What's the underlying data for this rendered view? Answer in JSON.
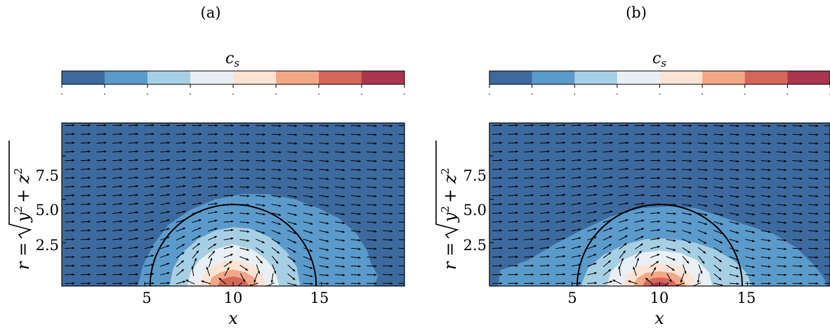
{
  "chart_data": [
    {
      "panel_label": "(a)",
      "type": "heatmap",
      "subtype": "filled contour with quiver overlay",
      "colorbar_title": "c",
      "colorbar_title_sub": "s",
      "colorbar_levels": [
        "#3d6a9e",
        "#5b9bcc",
        "#a7cfe4",
        "#e9f0f4",
        "#fde3d3",
        "#f2a886",
        "#d5675a",
        "#a7364e"
      ],
      "xlabel": "x",
      "ylabel": "r = √(y² + z²)",
      "ylabel_prefix": "r =",
      "ylabel_radicand_1": "y",
      "ylabel_radicand_2": "+ z",
      "ylabel_exp": "2",
      "x_ticks": [
        5,
        10,
        15
      ],
      "x_tick_labels": [
        "5",
        "10",
        "15"
      ],
      "y_ticks": [
        2.5,
        5.0,
        7.5
      ],
      "y_tick_labels": [
        "2.5",
        "5.0",
        "7.5"
      ],
      "xlim": [
        0.3,
        19.7
      ],
      "ylim": [
        0,
        9.4
      ],
      "circle": {
        "center_x": 10,
        "radius": 4.7
      },
      "contours": [
        {
          "level": 1,
          "points": [
            [
              4.6,
              0
            ],
            [
              4.9,
              1.2
            ],
            [
              5.5,
              2.4
            ],
            [
              6.3,
              3.5
            ],
            [
              7.6,
              4.4
            ],
            [
              9.0,
              5.0
            ],
            [
              10.5,
              5.3
            ],
            [
              12.0,
              5.3
            ],
            [
              13.5,
              5.0
            ],
            [
              14.8,
              4.5
            ],
            [
              16.0,
              3.9
            ],
            [
              17.0,
              3.0
            ],
            [
              17.6,
              2.0
            ],
            [
              17.8,
              1.3
            ],
            [
              18.2,
              0.6
            ],
            [
              18.0,
              0
            ]
          ]
        },
        {
          "level": 2,
          "points": [
            [
              6.4,
              0
            ],
            [
              6.6,
              1.0
            ],
            [
              7.1,
              1.9
            ],
            [
              8.0,
              2.7
            ],
            [
              9.0,
              3.2
            ],
            [
              10.0,
              3.4
            ],
            [
              11.0,
              3.3
            ],
            [
              12.1,
              2.8
            ],
            [
              13.0,
              2.0
            ],
            [
              13.6,
              1.1
            ],
            [
              13.8,
              0
            ]
          ]
        },
        {
          "level": 3,
          "points": [
            [
              7.4,
              0
            ],
            [
              7.6,
              0.8
            ],
            [
              8.1,
              1.5
            ],
            [
              8.9,
              2.1
            ],
            [
              10.0,
              2.4
            ],
            [
              11.1,
              2.1
            ],
            [
              11.9,
              1.5
            ],
            [
              12.4,
              0.8
            ],
            [
              12.6,
              0
            ]
          ]
        },
        {
          "level": 4,
          "points": [
            [
              8.1,
              0
            ],
            [
              8.3,
              0.6
            ],
            [
              8.8,
              1.1
            ],
            [
              9.4,
              1.4
            ],
            [
              10.0,
              1.5
            ],
            [
              10.6,
              1.4
            ],
            [
              11.2,
              1.1
            ],
            [
              11.7,
              0.6
            ],
            [
              11.9,
              0
            ]
          ]
        },
        {
          "level": 5,
          "points": [
            [
              8.6,
              0
            ],
            [
              8.8,
              0.5
            ],
            [
              9.3,
              0.8
            ],
            [
              10.0,
              0.95
            ],
            [
              10.7,
              0.8
            ],
            [
              11.2,
              0.5
            ],
            [
              11.4,
              0
            ]
          ]
        },
        {
          "level": 6,
          "points": [
            [
              9.1,
              0
            ],
            [
              9.3,
              0.35
            ],
            [
              9.7,
              0.5
            ],
            [
              10.0,
              0.55
            ],
            [
              10.3,
              0.5
            ],
            [
              10.7,
              0.35
            ],
            [
              10.9,
              0
            ]
          ]
        }
      ]
    },
    {
      "panel_label": "(b)",
      "type": "heatmap",
      "subtype": "filled contour with quiver overlay",
      "colorbar_title": "c",
      "colorbar_title_sub": "s",
      "colorbar_levels": [
        "#3d6a9e",
        "#5b9bcc",
        "#a7cfe4",
        "#e9f0f4",
        "#fde3d3",
        "#f2a886",
        "#d5675a",
        "#a7364e"
      ],
      "xlabel": "x",
      "ylabel": "r = √(y² + z²)",
      "ylabel_prefix": "r =",
      "ylabel_radicand_1": "y",
      "ylabel_radicand_2": "+ z",
      "ylabel_exp": "2",
      "x_ticks": [
        5,
        10,
        15
      ],
      "x_tick_labels": [
        "5",
        "10",
        "15"
      ],
      "y_ticks": [
        2.5,
        5.0,
        7.5
      ],
      "y_tick_labels": [
        "2.5",
        "5.0",
        "7.5"
      ],
      "xlim": [
        0.3,
        19.7
      ],
      "ylim": [
        0,
        9.4
      ],
      "circle": {
        "center_x": 10,
        "radius": 4.7
      },
      "contours": [
        {
          "level": 1,
          "points": [
            [
              0.8,
              0
            ],
            [
              0.9,
              0.9
            ],
            [
              2.5,
              1.5
            ],
            [
              4.0,
              2.4
            ],
            [
              5.5,
              3.2
            ],
            [
              7.2,
              4.0
            ],
            [
              9.0,
              4.5
            ],
            [
              10.5,
              4.6
            ],
            [
              12.0,
              4.5
            ],
            [
              13.5,
              4.0
            ],
            [
              15.0,
              3.5
            ],
            [
              16.5,
              3.0
            ],
            [
              17.8,
              2.2
            ],
            [
              18.8,
              1.2
            ],
            [
              19.4,
              0.4
            ],
            [
              19.5,
              0
            ]
          ]
        },
        {
          "level": 2,
          "points": [
            [
              5.5,
              0
            ],
            [
              5.9,
              1.0
            ],
            [
              6.8,
              1.8
            ],
            [
              8.0,
              2.4
            ],
            [
              9.2,
              2.7
            ],
            [
              10.0,
              2.75
            ],
            [
              10.8,
              2.7
            ],
            [
              12.0,
              2.5
            ],
            [
              13.2,
              2.1
            ],
            [
              14.3,
              1.4
            ],
            [
              15.0,
              0.7
            ],
            [
              15.2,
              0
            ]
          ]
        },
        {
          "level": 3,
          "points": [
            [
              7.0,
              0
            ],
            [
              7.2,
              0.8
            ],
            [
              7.9,
              1.5
            ],
            [
              8.8,
              1.9
            ],
            [
              10.0,
              2.05
            ],
            [
              11.2,
              1.9
            ],
            [
              12.1,
              1.5
            ],
            [
              12.8,
              0.8
            ],
            [
              13.0,
              0
            ]
          ]
        },
        {
          "level": 4,
          "points": [
            [
              7.9,
              0
            ],
            [
              8.1,
              0.6
            ],
            [
              8.7,
              1.05
            ],
            [
              9.3,
              1.25
            ],
            [
              10.0,
              1.3
            ],
            [
              10.7,
              1.25
            ],
            [
              11.3,
              1.05
            ],
            [
              11.9,
              0.6
            ],
            [
              12.1,
              0
            ]
          ]
        },
        {
          "level": 5,
          "points": [
            [
              8.5,
              0
            ],
            [
              8.7,
              0.45
            ],
            [
              9.2,
              0.75
            ],
            [
              10.0,
              0.85
            ],
            [
              10.8,
              0.75
            ],
            [
              11.3,
              0.45
            ],
            [
              11.5,
              0
            ]
          ]
        },
        {
          "level": 6,
          "points": [
            [
              9.0,
              0
            ],
            [
              9.2,
              0.3
            ],
            [
              9.6,
              0.45
            ],
            [
              10.0,
              0.5
            ],
            [
              10.4,
              0.45
            ],
            [
              10.8,
              0.3
            ],
            [
              11.0,
              0
            ]
          ]
        },
        {
          "level": 7,
          "points": [
            [
              9.4,
              0
            ],
            [
              9.6,
              0.15
            ],
            [
              10.0,
              0.22
            ],
            [
              10.4,
              0.15
            ],
            [
              10.6,
              0
            ]
          ]
        }
      ]
    }
  ]
}
